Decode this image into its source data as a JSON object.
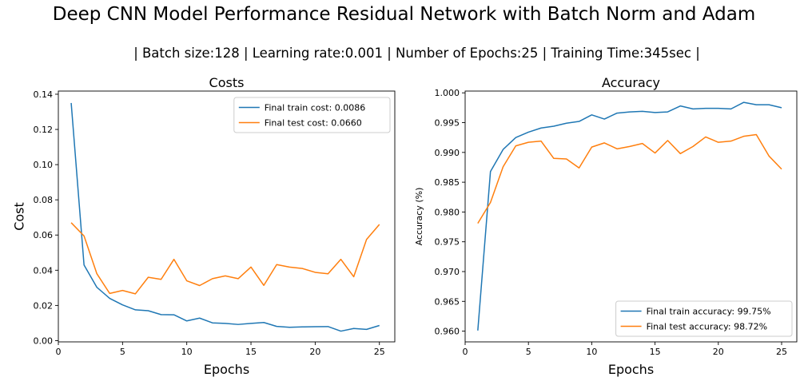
{
  "suptitle": "Deep CNN Model Performance Residual Network with Batch Norm and Adam",
  "subtitle": "| Batch size:128 | Learning rate:0.001 | Number of Epochs:25 | Training Time:345sec |",
  "colors": {
    "train": "#1f77b4",
    "test": "#ff7f0e"
  },
  "chart_data": [
    {
      "type": "line",
      "title": "Costs",
      "xlabel": "Epochs",
      "ylabel": "Cost",
      "xlim": [
        0,
        26.2
      ],
      "ylim": [
        -0.0007,
        0.1418
      ],
      "xticks": [
        0,
        5,
        10,
        15,
        20,
        25
      ],
      "yticks": [
        0.0,
        0.02,
        0.04,
        0.06,
        0.08,
        0.1,
        0.12,
        0.14
      ],
      "ytick_labels": [
        "0.00",
        "0.02",
        "0.04",
        "0.06",
        "0.08",
        "0.10",
        "0.12",
        "0.14"
      ],
      "legend_position": "upper right",
      "grid": false,
      "x": [
        1,
        2,
        3,
        4,
        5,
        6,
        7,
        8,
        9,
        10,
        11,
        12,
        13,
        14,
        15,
        16,
        17,
        18,
        19,
        20,
        21,
        22,
        23,
        24,
        25
      ],
      "series": [
        {
          "name": "Final train cost: 0.0086",
          "color": "#1f77b4",
          "values": [
            0.135,
            0.043,
            0.0303,
            0.024,
            0.0203,
            0.0175,
            0.017,
            0.0148,
            0.0147,
            0.0112,
            0.0128,
            0.0101,
            0.0098,
            0.0092,
            0.0098,
            0.0103,
            0.0081,
            0.0076,
            0.0078,
            0.0079,
            0.008,
            0.0054,
            0.0069,
            0.0064,
            0.0086
          ]
        },
        {
          "name": "Final test cost: 0.0660",
          "color": "#ff7f0e",
          "values": [
            0.067,
            0.0595,
            0.038,
            0.0268,
            0.0285,
            0.0266,
            0.036,
            0.0348,
            0.0462,
            0.034,
            0.0313,
            0.0352,
            0.0368,
            0.0352,
            0.0418,
            0.0314,
            0.0432,
            0.0418,
            0.041,
            0.0388,
            0.038,
            0.0462,
            0.0363,
            0.0575,
            0.066
          ]
        }
      ]
    },
    {
      "type": "line",
      "title": "Accuracy",
      "xlabel": "Epochs",
      "ylabel": "Accuracy (%)",
      "xlim": [
        0,
        26.2
      ],
      "ylim": [
        0.9582,
        1.0003
      ],
      "xticks": [
        0,
        5,
        10,
        15,
        20,
        25
      ],
      "yticks": [
        0.96,
        0.965,
        0.97,
        0.975,
        0.98,
        0.985,
        0.99,
        0.995,
        1.0
      ],
      "ytick_labels": [
        "0.960",
        "0.965",
        "0.970",
        "0.975",
        "0.980",
        "0.985",
        "0.990",
        "0.995",
        "1.000"
      ],
      "legend_position": "lower right",
      "grid": false,
      "x": [
        1,
        2,
        3,
        4,
        5,
        6,
        7,
        8,
        9,
        10,
        11,
        12,
        13,
        14,
        15,
        16,
        17,
        18,
        19,
        20,
        21,
        22,
        23,
        24,
        25
      ],
      "series": [
        {
          "name": "Final train accuracy: 99.75%",
          "color": "#1f77b4",
          "values": [
            0.9601,
            0.9868,
            0.9905,
            0.9925,
            0.9934,
            0.9941,
            0.9944,
            0.9949,
            0.9952,
            0.9963,
            0.9956,
            0.9966,
            0.9968,
            0.9969,
            0.9967,
            0.9968,
            0.9978,
            0.9973,
            0.9974,
            0.9974,
            0.9973,
            0.9984,
            0.998,
            0.998,
            0.9975
          ]
        },
        {
          "name": "Final test accuracy: 98.72%",
          "color": "#ff7f0e",
          "values": [
            0.9781,
            0.9816,
            0.9876,
            0.9911,
            0.9917,
            0.9919,
            0.989,
            0.9889,
            0.9874,
            0.9909,
            0.9916,
            0.9906,
            0.991,
            0.9915,
            0.9899,
            0.992,
            0.9898,
            0.991,
            0.9926,
            0.9917,
            0.9919,
            0.9927,
            0.993,
            0.9894,
            0.9872
          ]
        }
      ]
    }
  ]
}
